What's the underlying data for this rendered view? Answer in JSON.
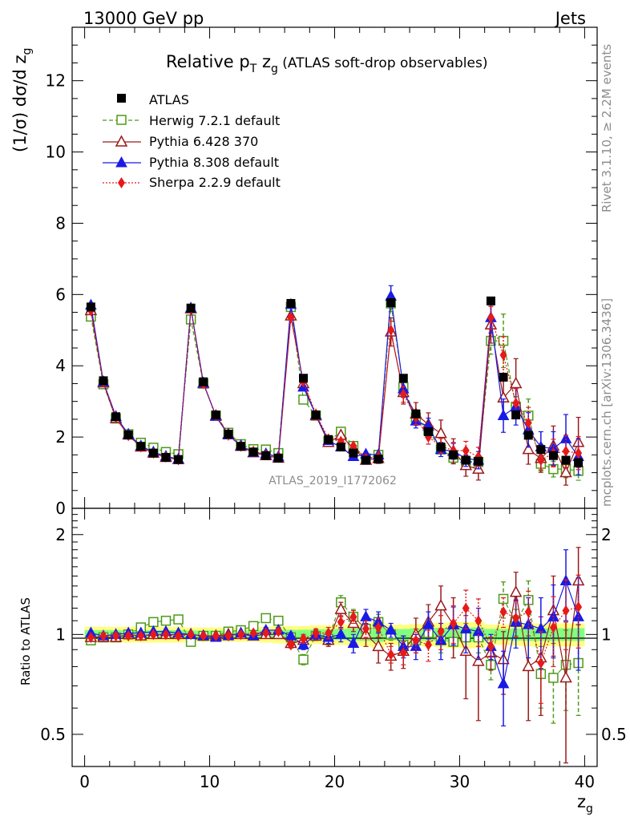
{
  "header": {
    "left": "13000 GeV pp",
    "right": "Jets"
  },
  "side": {
    "top": "Rivet 3.1.10, ≥ 2.2M events",
    "bottom": "mcplots.cern.ch [arXiv:1306.3436]"
  },
  "chart_data": {
    "type": "scatter",
    "title": "Relative p_T z_g (ATLAS soft-drop observables)",
    "watermark": "ATLAS_2019_I1772062",
    "xlabel": "z_g",
    "ylabel": "(1/σ) dσ/d z_g",
    "ratio_ylabel": "Ratio to ATLAS",
    "xlim": [
      -1,
      41
    ],
    "ylim": [
      0,
      13.5
    ],
    "ratio_ylim": [
      0.4,
      2.4
    ],
    "ratio_scale": "log",
    "xticks": [
      0,
      10,
      20,
      30,
      40
    ],
    "yticks": [
      0,
      2,
      4,
      6,
      8,
      10,
      12
    ],
    "ratio_yticks": [
      0.5,
      1,
      2
    ],
    "legend_position": "top-left",
    "x": [
      0.5,
      1.5,
      2.5,
      3.5,
      4.5,
      5.5,
      6.5,
      7.5,
      8.5,
      9.5,
      10.5,
      11.5,
      12.5,
      13.5,
      14.5,
      15.5,
      16.5,
      17.5,
      18.5,
      19.5,
      20.5,
      21.5,
      22.5,
      23.5,
      24.5,
      25.5,
      26.5,
      27.5,
      28.5,
      29.5,
      30.5,
      31.5,
      32.5,
      33.5,
      34.5,
      35.5,
      36.5,
      37.5,
      38.5,
      39.5
    ],
    "data": {
      "name": "ATLAS",
      "values": [
        5.65,
        3.58,
        2.57,
        2.06,
        1.74,
        1.55,
        1.43,
        1.37,
        5.62,
        3.55,
        2.62,
        2.08,
        1.74,
        1.58,
        1.48,
        1.41,
        5.75,
        3.65,
        2.62,
        1.93,
        1.72,
        1.55,
        1.35,
        1.38,
        5.77,
        3.65,
        2.65,
        2.15,
        1.72,
        1.5,
        1.35,
        1.32,
        5.82,
        3.68,
        2.62,
        2.05,
        1.65,
        1.48,
        1.35,
        1.28
      ]
    },
    "band_rel": [
      0.055,
      0.055,
      0.055,
      0.055,
      0.055,
      0.055,
      0.055,
      0.055,
      0.05,
      0.05,
      0.05,
      0.05,
      0.05,
      0.05,
      0.055,
      0.06,
      0.06,
      0.06,
      0.065,
      0.065,
      0.07,
      0.075,
      0.08,
      0.09,
      0.07,
      0.07,
      0.075,
      0.08,
      0.085,
      0.09,
      0.09,
      0.09,
      0.07,
      0.07,
      0.075,
      0.08,
      0.08,
      0.08,
      0.08,
      0.08
    ],
    "series": [
      {
        "name": "Herwig 7.2.1 default",
        "color": "#4d9a19",
        "values": [
          5.38,
          3.48,
          2.52,
          2.08,
          1.84,
          1.7,
          1.58,
          1.52,
          5.3,
          3.5,
          2.6,
          2.12,
          1.8,
          1.66,
          1.65,
          1.55,
          5.65,
          3.05,
          2.6,
          1.88,
          2.15,
          1.75,
          1.4,
          1.5,
          5.75,
          3.4,
          2.55,
          2.18,
          1.65,
          1.42,
          1.32,
          1.3,
          4.7,
          4.7,
          2.85,
          2.6,
          1.25,
          1.1,
          1.1,
          1.05
        ],
        "ratio": [
          0.96,
          0.98,
          0.98,
          1.0,
          1.05,
          1.09,
          1.1,
          1.11,
          0.95,
          0.99,
          0.99,
          1.02,
          1.03,
          1.06,
          1.12,
          1.1,
          0.98,
          0.84,
          0.99,
          0.97,
          1.25,
          1.13,
          1.04,
          1.09,
          1.0,
          0.93,
          0.96,
          1.01,
          0.96,
          0.95,
          0.98,
          0.98,
          0.81,
          1.28,
          1.09,
          1.27,
          0.76,
          0.74,
          0.81,
          0.82
        ],
        "ratio_err": [
          0.01,
          0.01,
          0.01,
          0.01,
          0.01,
          0.01,
          0.01,
          0.01,
          0.01,
          0.01,
          0.01,
          0.01,
          0.01,
          0.01,
          0.02,
          0.02,
          0.02,
          0.03,
          0.03,
          0.04,
          0.06,
          0.06,
          0.06,
          0.06,
          0.04,
          0.06,
          0.06,
          0.08,
          0.08,
          0.1,
          0.1,
          0.1,
          0.08,
          0.16,
          0.1,
          0.18,
          0.16,
          0.2,
          0.22,
          0.25
        ]
      },
      {
        "name": "Pythia 6.428 370",
        "color": "#9a1a1a",
        "values": [
          5.55,
          3.52,
          2.52,
          2.06,
          1.72,
          1.55,
          1.43,
          1.37,
          5.6,
          3.5,
          2.6,
          2.08,
          1.74,
          1.56,
          1.48,
          1.41,
          5.4,
          3.5,
          2.6,
          1.85,
          2.05,
          1.68,
          1.35,
          1.4,
          4.95,
          3.25,
          2.65,
          2.35,
          2.1,
          1.6,
          1.2,
          1.1,
          5.15,
          3.1,
          3.5,
          1.65,
          1.4,
          1.75,
          1.0,
          1.85
        ],
        "ratio": [
          0.98,
          0.98,
          0.98,
          1.0,
          0.99,
          1.0,
          1.0,
          1.0,
          1.0,
          0.99,
          0.99,
          1.0,
          1.0,
          0.99,
          1.0,
          1.0,
          0.94,
          0.96,
          0.99,
          0.96,
          1.19,
          1.08,
          1.0,
          0.92,
          0.86,
          0.89,
          1.0,
          1.09,
          1.22,
          1.07,
          0.89,
          0.83,
          0.88,
          0.84,
          1.34,
          0.8,
          0.85,
          1.18,
          0.74,
          1.45
        ],
        "ratio_err": [
          0.01,
          0.01,
          0.01,
          0.01,
          0.01,
          0.01,
          0.01,
          0.01,
          0.01,
          0.01,
          0.01,
          0.01,
          0.01,
          0.01,
          0.01,
          0.02,
          0.02,
          0.03,
          0.03,
          0.04,
          0.06,
          0.06,
          0.08,
          0.1,
          0.08,
          0.1,
          0.12,
          0.14,
          0.18,
          0.22,
          0.25,
          0.28,
          0.1,
          0.18,
          0.2,
          0.25,
          0.28,
          0.32,
          0.35,
          0.38
        ]
      },
      {
        "name": "Pythia 8.308 default",
        "color": "#1a1ae6",
        "values": [
          5.7,
          3.55,
          2.58,
          2.08,
          1.75,
          1.58,
          1.46,
          1.38,
          5.62,
          3.52,
          2.58,
          2.06,
          1.76,
          1.57,
          1.53,
          1.45,
          5.72,
          3.4,
          2.62,
          1.9,
          1.72,
          1.45,
          1.52,
          1.5,
          5.95,
          3.35,
          2.45,
          2.3,
          1.65,
          1.6,
          1.4,
          1.35,
          5.35,
          2.6,
          2.85,
          2.2,
          1.72,
          1.68,
          1.95,
          1.45
        ],
        "ratio": [
          1.01,
          0.99,
          1.0,
          1.01,
          1.01,
          1.02,
          1.02,
          1.01,
          1.0,
          0.99,
          0.98,
          0.99,
          1.01,
          0.99,
          1.03,
          1.03,
          0.99,
          0.93,
          1.0,
          0.98,
          1.0,
          0.94,
          1.13,
          1.09,
          1.03,
          0.92,
          0.92,
          1.07,
          0.96,
          1.07,
          1.04,
          1.02,
          0.92,
          0.71,
          1.09,
          1.07,
          1.04,
          1.13,
          1.45,
          1.13
        ],
        "ratio_err": [
          0.01,
          0.01,
          0.01,
          0.01,
          0.01,
          0.01,
          0.01,
          0.01,
          0.01,
          0.01,
          0.01,
          0.01,
          0.01,
          0.01,
          0.02,
          0.02,
          0.02,
          0.03,
          0.03,
          0.04,
          0.05,
          0.06,
          0.06,
          0.08,
          0.05,
          0.07,
          0.08,
          0.1,
          0.12,
          0.14,
          0.16,
          0.18,
          0.08,
          0.18,
          0.18,
          0.22,
          0.25,
          0.28,
          0.35,
          0.35
        ]
      },
      {
        "name": "Sherpa 2.2.9 default",
        "color": "#e61a1a",
        "values": [
          5.55,
          3.55,
          2.55,
          2.04,
          1.72,
          1.55,
          1.44,
          1.36,
          5.6,
          3.5,
          2.6,
          2.05,
          1.74,
          1.6,
          1.5,
          1.43,
          5.35,
          3.55,
          2.65,
          1.95,
          1.88,
          1.75,
          1.4,
          1.45,
          5.0,
          3.2,
          2.55,
          2.0,
          1.75,
          1.62,
          1.62,
          1.45,
          5.35,
          4.3,
          2.95,
          2.4,
          1.35,
          1.55,
          1.6,
          1.55
        ],
        "ratio": [
          0.98,
          0.99,
          0.99,
          0.99,
          0.99,
          1.0,
          1.0,
          0.99,
          1.0,
          0.99,
          0.99,
          0.99,
          1.0,
          1.01,
          1.01,
          1.02,
          0.93,
          0.97,
          1.01,
          1.01,
          1.09,
          1.13,
          1.04,
          1.05,
          0.87,
          0.88,
          0.96,
          0.93,
          1.02,
          1.08,
          1.2,
          1.1,
          0.92,
          1.17,
          1.12,
          1.17,
          0.82,
          1.05,
          1.18,
          1.21
        ],
        "ratio_err": [
          0.01,
          0.01,
          0.01,
          0.01,
          0.01,
          0.01,
          0.01,
          0.01,
          0.01,
          0.01,
          0.01,
          0.01,
          0.01,
          0.01,
          0.01,
          0.02,
          0.02,
          0.03,
          0.03,
          0.04,
          0.05,
          0.05,
          0.06,
          0.07,
          0.05,
          0.07,
          0.08,
          0.1,
          0.12,
          0.14,
          0.16,
          0.18,
          0.06,
          0.12,
          0.14,
          0.18,
          0.2,
          0.25,
          0.28,
          0.3
        ]
      }
    ]
  },
  "colors": {
    "band_outer": "#ffff80",
    "band_inner": "#80ff80",
    "data": "#000000"
  }
}
